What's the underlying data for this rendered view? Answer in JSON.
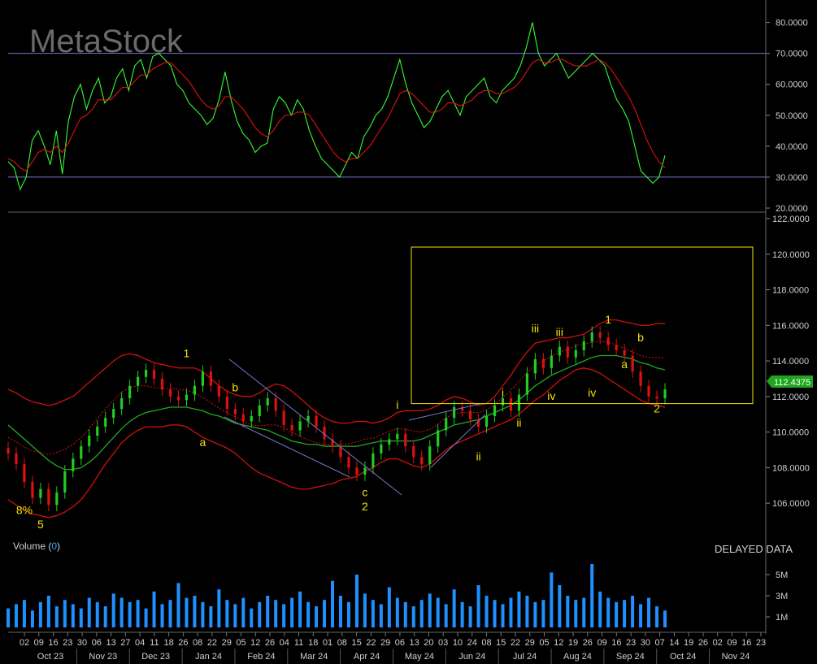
{
  "watermark": "MetaStock",
  "delayed_label": "DELAYED DATA",
  "volume_label": "Volume (",
  "volume_value": "0",
  "volume_close": ")",
  "last_price_tag": "112.4375",
  "colors": {
    "background": "#000000",
    "rsi": "#33ff33",
    "rsi_avg": "#e01010",
    "price_up": "#22cc22",
    "price_down": "#e01010",
    "band": "#e01010",
    "ma": "#22aa22",
    "channel": "#7777cc",
    "box": "#f2e200",
    "wave_label": "#f2e200",
    "volume": "#1e90ff"
  },
  "chart_data": [
    {
      "type": "line",
      "panel": "oscillator",
      "ylim": [
        20,
        82
      ],
      "yticks": [
        "80.0000",
        "70.0000",
        "60.0000",
        "50.0000",
        "40.0000",
        "30.0000",
        "20.0000"
      ],
      "yticks_values": [
        80,
        70,
        60,
        50,
        40,
        30,
        20
      ],
      "reference_lines": [
        70,
        30
      ],
      "series": [
        {
          "values": [
            35,
            33,
            26,
            30,
            42,
            45,
            40,
            34,
            45,
            31,
            48,
            56,
            60,
            52,
            58,
            62,
            54,
            56,
            62,
            65,
            58,
            66,
            68,
            62,
            69,
            70,
            68,
            66,
            60,
            58,
            54,
            52,
            50,
            47,
            49,
            55,
            64,
            55,
            48,
            44,
            42,
            38,
            40,
            41,
            52,
            56,
            54,
            50,
            55,
            52,
            45,
            40,
            36,
            34,
            32,
            30,
            34,
            38,
            36,
            43,
            46,
            50,
            52,
            56,
            62,
            68,
            60,
            54,
            50,
            46,
            48,
            52,
            56,
            58,
            54,
            50,
            56,
            58,
            60,
            62,
            56,
            54,
            58,
            60,
            62,
            66,
            72,
            80,
            70,
            66,
            68,
            70,
            66,
            62,
            64,
            66,
            68,
            70,
            68,
            66,
            60,
            55,
            52,
            48,
            40,
            32,
            30,
            28,
            30,
            37
          ]
        },
        {
          "values": [
            36,
            35,
            33,
            32,
            35,
            38,
            39,
            38,
            40,
            38,
            41,
            45,
            49,
            50,
            52,
            55,
            55,
            55,
            57,
            59,
            59,
            61,
            63,
            63,
            65,
            66,
            67,
            67,
            65,
            63,
            61,
            58,
            55,
            53,
            52,
            53,
            56,
            56,
            54,
            52,
            49,
            46,
            44,
            43,
            45,
            48,
            50,
            50,
            51,
            51,
            50,
            47,
            44,
            41,
            38,
            36,
            35,
            36,
            36,
            38,
            40,
            43,
            46,
            49,
            53,
            57,
            58,
            57,
            55,
            53,
            51,
            51,
            52,
            54,
            54,
            53,
            54,
            55,
            57,
            58,
            58,
            57,
            57,
            58,
            59,
            61,
            64,
            67,
            68,
            67,
            67,
            68,
            68,
            67,
            66,
            66,
            66,
            67,
            68,
            67,
            65,
            62,
            59,
            56,
            52,
            47,
            42,
            38,
            35,
            33
          ]
        }
      ]
    },
    {
      "type": "candlestick",
      "panel": "price",
      "ylim": [
        104.5,
        122
      ],
      "yticks": [
        "122.0000",
        "120.0000",
        "118.0000",
        "116.0000",
        "114.0000",
        "112.0000",
        "110.0000",
        "108.0000",
        "106.0000"
      ],
      "yticks_values": [
        122,
        120,
        118,
        116,
        114,
        112,
        110,
        108,
        106
      ],
      "last_price": 112.4375,
      "close": [
        108.8,
        108.2,
        107.2,
        106.3,
        106.8,
        105.9,
        106.6,
        107.8,
        108.5,
        109.2,
        109.8,
        110.3,
        110.8,
        111.3,
        111.9,
        112.6,
        113.1,
        113.5,
        113.0,
        112.4,
        112.0,
        111.8,
        112.1,
        112.6,
        113.4,
        112.6,
        112.0,
        111.3,
        111.0,
        110.6,
        110.9,
        111.5,
        111.9,
        111.2,
        110.4,
        110.1,
        110.6,
        110.9,
        110.3,
        109.6,
        109.2,
        108.6,
        108.0,
        107.6,
        108.0,
        108.8,
        109.3,
        109.6,
        109.9,
        109.2,
        108.6,
        108.2,
        109.2,
        110.1,
        110.8,
        111.4,
        111.2,
        110.7,
        110.3,
        110.9,
        111.5,
        111.9,
        111.2,
        112.1,
        113.3,
        114.1,
        113.6,
        114.3,
        114.8,
        114.2,
        114.6,
        115.1,
        115.6,
        115.3,
        114.9,
        114.6,
        114.3,
        113.4,
        112.6,
        112.0,
        111.9,
        112.4
      ],
      "band_upper": [
        112.4,
        112.2,
        111.9,
        111.7,
        111.6,
        111.5,
        111.6,
        111.8,
        112.0,
        112.4,
        112.8,
        113.2,
        113.6,
        114.0,
        114.3,
        114.4,
        114.3,
        114.1,
        113.9,
        113.8,
        113.7,
        113.6,
        113.6,
        113.6,
        113.4,
        113.0,
        112.6,
        112.3,
        112.1,
        112.0,
        112.0,
        112.2,
        112.5,
        112.7,
        112.6,
        112.3,
        111.9,
        111.5,
        111.1,
        110.8,
        110.6,
        110.5,
        110.5,
        110.6,
        110.6,
        110.5,
        110.6,
        110.8,
        111.1,
        111.2,
        111.2,
        111.2,
        111.3,
        111.5,
        111.8,
        112.0,
        111.9,
        111.7,
        111.5,
        111.6,
        112.0,
        112.6,
        113.2,
        113.9,
        114.5,
        115.0,
        115.1,
        115.2,
        115.3,
        115.3,
        115.4,
        115.5,
        115.8,
        116.1,
        116.3,
        116.3,
        116.2,
        116.1,
        116.0,
        116.0,
        116.1,
        116.1
      ],
      "band_lower": [
        106.2,
        105.9,
        105.6,
        105.4,
        105.3,
        105.2,
        105.3,
        105.5,
        105.8,
        106.2,
        106.8,
        107.5,
        108.2,
        108.8,
        109.4,
        109.8,
        110.1,
        110.3,
        110.3,
        110.3,
        110.4,
        110.4,
        110.3,
        110.0,
        109.7,
        109.5,
        109.3,
        109.1,
        108.8,
        108.4,
        108.0,
        107.7,
        107.5,
        107.3,
        107.1,
        106.9,
        106.8,
        106.8,
        106.9,
        107.0,
        107.1,
        107.3,
        107.4,
        107.5,
        107.8,
        108.0,
        108.3,
        108.5,
        108.5,
        108.3,
        108.1,
        108.0,
        108.2,
        108.6,
        109.0,
        109.3,
        109.5,
        109.7,
        109.9,
        110.1,
        110.3,
        110.5,
        110.7,
        111.0,
        111.4,
        111.8,
        112.1,
        112.5,
        112.9,
        113.2,
        113.5,
        113.6,
        113.5,
        113.3,
        113.0,
        112.7,
        112.4,
        112.1,
        111.8,
        111.6,
        111.5,
        111.4
      ],
      "ma": [
        110.4,
        110.0,
        109.6,
        109.2,
        108.8,
        108.4,
        108.1,
        107.9,
        107.9,
        108.0,
        108.3,
        108.7,
        109.2,
        109.7,
        110.2,
        110.6,
        110.9,
        111.1,
        111.2,
        111.3,
        111.4,
        111.4,
        111.4,
        111.3,
        111.2,
        111.0,
        110.9,
        110.7,
        110.5,
        110.4,
        110.3,
        110.2,
        110.1,
        109.9,
        109.7,
        109.5,
        109.4,
        109.3,
        109.3,
        109.2,
        109.2,
        109.2,
        109.2,
        109.2,
        109.3,
        109.4,
        109.5,
        109.5,
        109.5,
        109.5,
        109.5,
        109.6,
        109.8,
        110.0,
        110.2,
        110.4,
        110.5,
        110.6,
        110.7,
        110.9,
        111.1,
        111.3,
        111.5,
        111.8,
        112.2,
        112.6,
        112.9,
        113.2,
        113.4,
        113.6,
        113.8,
        114.0,
        114.2,
        114.3,
        114.3,
        114.3,
        114.2,
        114.1,
        113.9,
        113.8,
        113.6,
        113.5
      ],
      "wave_labels": [
        {
          "text": "8%",
          "x_index": 2,
          "y": 105.4
        },
        {
          "text": "5",
          "x_index": 4,
          "y": 104.6
        },
        {
          "text": "1",
          "x_index": 22,
          "y": 114.2
        },
        {
          "text": "b",
          "x_index": 28,
          "y": 112.3
        },
        {
          "text": "a",
          "x_index": 24,
          "y": 109.2
        },
        {
          "text": "c",
          "x_index": 44,
          "y": 106.4
        },
        {
          "text": "2",
          "x_index": 44,
          "y": 105.6
        },
        {
          "text": "i",
          "x_index": 48,
          "y": 111.3
        },
        {
          "text": "ii",
          "x_index": 58,
          "y": 108.4
        },
        {
          "text": "i",
          "x_index": 61,
          "y": 112.0
        },
        {
          "text": "ii",
          "x_index": 63,
          "y": 110.3
        },
        {
          "text": "iii",
          "x_index": 65,
          "y": 115.6
        },
        {
          "text": "iii",
          "x_index": 68,
          "y": 115.4
        },
        {
          "text": "iv",
          "x_index": 67,
          "y": 111.8
        },
        {
          "text": "iv",
          "x_index": 72,
          "y": 112.0
        },
        {
          "text": "1",
          "x_index": 74,
          "y": 116.1
        },
        {
          "text": "b",
          "x_index": 78,
          "y": 115.1
        },
        {
          "text": "a",
          "x_index": 76,
          "y": 113.6
        },
        {
          "text": "2",
          "x_index": 80,
          "y": 111.1
        }
      ]
    },
    {
      "type": "bar",
      "panel": "volume",
      "ylim": [
        0,
        6
      ],
      "yticks": [
        "5M",
        "3M",
        "1M"
      ],
      "yticks_values": [
        5,
        3,
        1
      ],
      "values": [
        1.8,
        2.2,
        2.6,
        1.6,
        2.4,
        3.0,
        2.0,
        2.6,
        2.2,
        1.8,
        2.8,
        2.4,
        2.0,
        3.2,
        2.8,
        2.4,
        2.6,
        1.8,
        3.4,
        2.2,
        2.6,
        4.2,
        2.8,
        3.0,
        2.4,
        2.0,
        3.6,
        2.6,
        2.2,
        2.8,
        1.8,
        2.4,
        3.0,
        2.6,
        2.2,
        2.8,
        3.4,
        2.4,
        2.0,
        2.6,
        4.4,
        3.0,
        2.4,
        5.0,
        3.2,
        2.6,
        2.2,
        3.8,
        2.8,
        2.4,
        2.0,
        2.6,
        3.2,
        2.8,
        2.2,
        3.6,
        2.4,
        2.0,
        4.0,
        3.0,
        2.6,
        2.2,
        2.8,
        3.4,
        3.0,
        2.4,
        2.6,
        5.2,
        4.0,
        3.0,
        2.6,
        2.8,
        6.0,
        3.4,
        2.8,
        2.4,
        2.6,
        3.0,
        2.2,
        2.8,
        2.0,
        1.6
      ]
    }
  ],
  "x_axis": {
    "days": [
      "02",
      "09",
      "16",
      "23",
      "30",
      "06",
      "13",
      "27",
      "04",
      "11",
      "18",
      "26",
      "08",
      "22",
      "29",
      "05",
      "12",
      "26",
      "04",
      "11",
      "18",
      "01",
      "08",
      "15",
      "22",
      "29",
      "06",
      "13",
      "20",
      "03",
      "10",
      "24",
      "08",
      "15",
      "22",
      "29",
      "05",
      "12",
      "19",
      "26",
      "09",
      "16",
      "23",
      "30",
      "07",
      "14",
      "19",
      "26",
      "02",
      "09",
      "16",
      "23"
    ],
    "months": [
      "Oct 23",
      "Nov 23",
      "Dec 23",
      "Jan 24",
      "Feb 24",
      "Mar 24",
      "Apr 24",
      "May 24",
      "Jun 24",
      "Jul 24",
      "Aug 24",
      "Sep 24",
      "Oct 24",
      "Nov 24"
    ]
  }
}
